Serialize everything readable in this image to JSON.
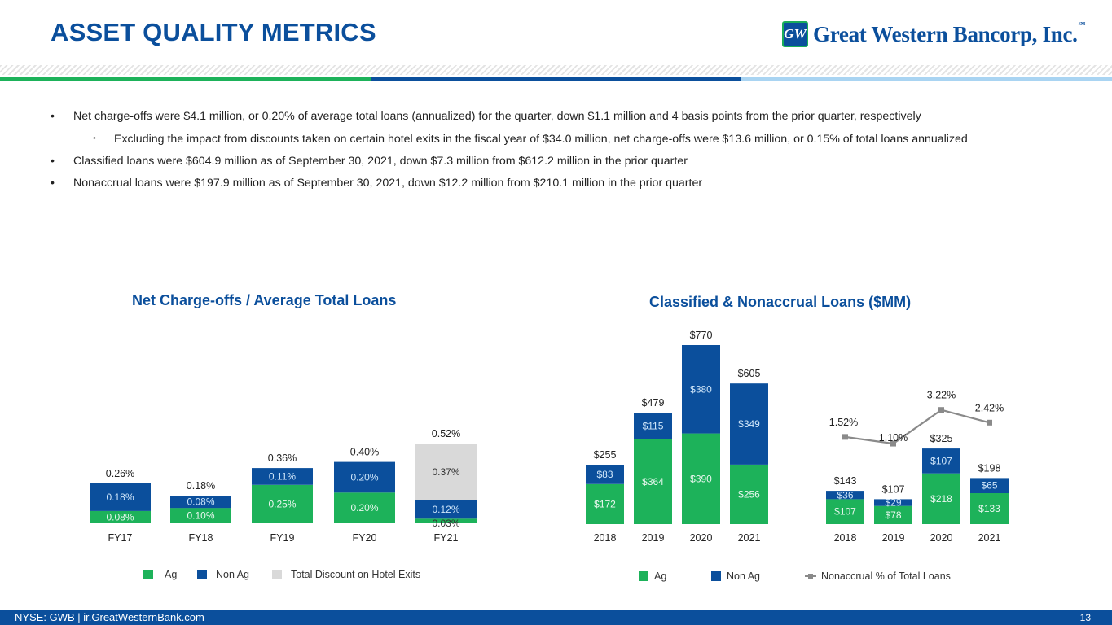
{
  "header": {
    "title": "ASSET QUALITY METRICS",
    "logo_mark": "GW",
    "logo_text": "Great Western Bancorp, Inc.",
    "logo_tm": "SM",
    "colors": {
      "brand_blue": "#0B4F9C",
      "brand_green": "#1DB25A",
      "light_blue": "#A9D4F2"
    }
  },
  "bullets": [
    {
      "text": "Net charge-offs were $4.1 million, or 0.20% of average total loans (annualized) for the quarter, down $1.1 million and 4 basis points from the prior quarter, respectively",
      "sub": "Excluding the impact from discounts taken on certain hotel exits in the fiscal year of $34.0 million, net charge-offs were $13.6 million, or 0.15% of total loans annualized"
    },
    {
      "text": "Classified loans were $604.9 million as of September 30, 2021, down $7.3 million from $612.2 million in the prior quarter"
    },
    {
      "text": "Nonaccrual loans were $197.9 million as of September 30, 2021, down $12.2 million from $210.1 million in the prior quarter"
    }
  ],
  "bullet_glyph": "•",
  "sub_bullet_glyph": "◦",
  "chart_data": [
    {
      "type": "bar",
      "stacked": true,
      "title": "Net Charge-offs / Average Total Loans",
      "categories": [
        "FY17",
        "FY18",
        "FY19",
        "FY20",
        "FY21"
      ],
      "series": [
        {
          "name": "Ag",
          "color": "#1DB25A",
          "values": [
            0.08,
            0.1,
            0.25,
            0.2,
            0.03
          ],
          "labels": [
            "0.08%",
            "0.10%",
            "0.25%",
            "0.20%",
            "0.03%"
          ]
        },
        {
          "name": "Non Ag",
          "color": "#0B4F9C",
          "values": [
            0.18,
            0.08,
            0.11,
            0.2,
            0.12
          ],
          "labels": [
            "0.18%",
            "0.08%",
            "0.11%",
            "0.20%",
            "0.12%"
          ]
        },
        {
          "name": "Total Discount on Hotel Exits",
          "color": "#D9D9D9",
          "values": [
            0,
            0,
            0,
            0,
            0.37
          ],
          "labels": [
            "",
            "",
            "",
            "",
            "0.37%"
          ]
        }
      ],
      "totals": [
        "0.26%",
        "0.18%",
        "0.36%",
        "0.40%",
        "0.52%"
      ],
      "total_values": [
        0.26,
        0.18,
        0.36,
        0.4,
        0.52
      ],
      "unit": "%",
      "legend": "bottom",
      "grid": false
    },
    {
      "type": "bar",
      "stacked": true,
      "title": "Classified Loans ($MM)",
      "categories": [
        "2018",
        "2019",
        "2020",
        "2021"
      ],
      "series": [
        {
          "name": "Ag",
          "color": "#1DB25A",
          "values": [
            172,
            364,
            390,
            256
          ],
          "labels": [
            "$172",
            "$364",
            "$390",
            "$256"
          ]
        },
        {
          "name": "Non Ag",
          "color": "#0B4F9C",
          "values": [
            83,
            115,
            380,
            349
          ],
          "labels": [
            "$83",
            "$115",
            "$380",
            "$349"
          ]
        }
      ],
      "totals": [
        "$255",
        "$479",
        "$770",
        "$605"
      ],
      "total_values": [
        255,
        479,
        770,
        605
      ],
      "legend": "bottom",
      "grid": false
    },
    {
      "type": "bar",
      "stacked": true,
      "title": "Nonaccrual Loans ($MM)",
      "categories": [
        "2018",
        "2019",
        "2020",
        "2021"
      ],
      "series": [
        {
          "name": "Ag",
          "color": "#1DB25A",
          "values": [
            107,
            78,
            218,
            133
          ],
          "labels": [
            "$107",
            "$78",
            "$218",
            "$133"
          ]
        },
        {
          "name": "Non Ag",
          "color": "#0B4F9C",
          "values": [
            36,
            29,
            107,
            65
          ],
          "labels": [
            "$36",
            "$29",
            "$107",
            "$65"
          ]
        }
      ],
      "totals": [
        "$143",
        "$107",
        "$325",
        "$198"
      ],
      "total_values": [
        143,
        107,
        325,
        198
      ],
      "line_series": {
        "name": "Nonaccrual % of Total Loans",
        "color": "#8A8A8A",
        "values": [
          1.52,
          1.1,
          3.22,
          2.42
        ],
        "labels": [
          "1.52%",
          "1.10%",
          "3.22%",
          "2.42%"
        ]
      },
      "legend": "bottom",
      "grid": false
    }
  ],
  "right_panel_title": "Classified & Nonaccrual Loans ($MM)",
  "legends": {
    "left": [
      {
        "label": "Ag",
        "color": "#1DB25A"
      },
      {
        "label": "Non Ag",
        "color": "#0B4F9C"
      },
      {
        "label": "Total Discount on Hotel Exits",
        "color": "#D9D9D9"
      }
    ],
    "right": [
      {
        "label": "Ag",
        "color": "#1DB25A"
      },
      {
        "label": "Non Ag",
        "color": "#0B4F9C"
      },
      {
        "label": "Nonaccrual % of Total Loans",
        "color": "#8A8A8A"
      }
    ]
  },
  "footer": {
    "left": "NYSE: GWB  |  ir.GreatWesternBank.com",
    "page_number": "13"
  }
}
